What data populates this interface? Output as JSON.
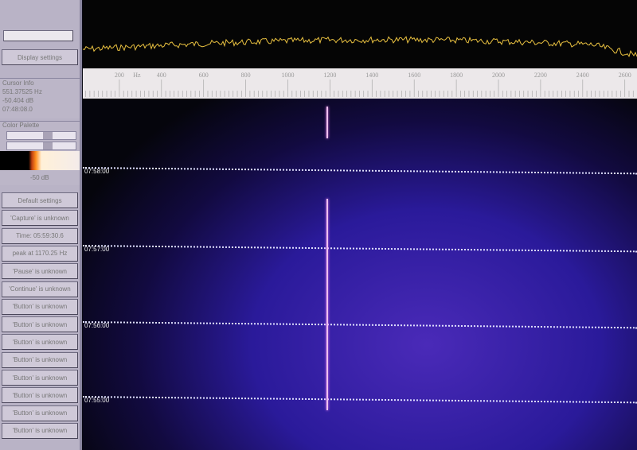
{
  "sidebar": {
    "display_settings": "Display settings",
    "cursor_info": {
      "title": "Cursor Info",
      "freq": "551.37525 Hz",
      "level": "-50.404 dB",
      "time": "07:48:08.0"
    },
    "color_palette": {
      "title": "Color Palette",
      "level_label": "-50 dB"
    },
    "buttons": [
      "Default settings",
      "'Capture' is unknown",
      "Time: 05:59:30.6",
      "peak at 1170.25 Hz",
      "'Pause' is unknown",
      "'Continue' is unknown",
      "'Button' is unknown",
      "'Button' is unknown",
      "'Button' is unknown",
      "'Button' is unknown",
      "'Button' is unknown",
      "'Button' is unknown",
      "'Button' is unknown",
      "'Button' is unknown"
    ]
  },
  "frequency_scale": {
    "unit": "Hz",
    "ticks": [
      "200",
      "400",
      "600",
      "800",
      "1000",
      "1200",
      "1400",
      "1600",
      "1800",
      "2000",
      "2200",
      "2400",
      "2600"
    ]
  },
  "waterfall": {
    "time_labels": [
      "07:58:00",
      "07:57:00",
      "07:56:00",
      "07:55:00"
    ],
    "signal_frequency_hz": 1170.25
  },
  "colors": {
    "spectrum_trace": "#e8c040",
    "waterfall_bg": "#2a1a9a",
    "signal": "#f0c0f0"
  }
}
